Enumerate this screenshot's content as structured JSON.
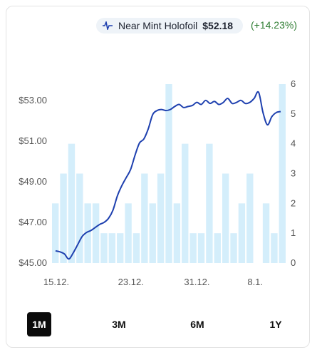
{
  "legend": {
    "series_name": "Near Mint Holofoil",
    "price": "$52.18",
    "change": "(+14.23%)",
    "icon": "line-chart-icon",
    "line_color": "#1e40af",
    "bar_color": "#d4eefb"
  },
  "ranges": [
    {
      "label": "1M",
      "active": true
    },
    {
      "label": "3M",
      "active": false
    },
    {
      "label": "6M",
      "active": false
    },
    {
      "label": "1Y",
      "active": false
    }
  ],
  "chart_data": {
    "type": "bar+line",
    "x_ticks": [
      "15.12.",
      "23.12.",
      "31.12.",
      "8.1."
    ],
    "y_left_ticks": [
      "$45.00",
      "$47.00",
      "$49.00",
      "$51.00",
      "$53.00"
    ],
    "y_left_range": [
      45,
      53.8
    ],
    "y_right_ticks": [
      "0",
      "1",
      "2",
      "3",
      "4",
      "5",
      "6"
    ],
    "y_right_range": [
      0,
      6
    ],
    "bars": [
      2,
      3,
      4,
      3,
      2,
      2,
      1,
      1,
      1,
      2,
      1,
      3,
      2,
      3,
      6,
      2,
      4,
      1,
      1,
      4,
      1,
      3,
      1,
      2,
      3,
      0,
      2,
      1,
      6
    ],
    "price_line": [
      45.6,
      45.55,
      45.45,
      45.2,
      45.5,
      45.9,
      46.3,
      46.5,
      46.6,
      46.75,
      46.9,
      47.0,
      47.2,
      47.6,
      48.3,
      48.8,
      49.2,
      49.6,
      50.3,
      50.9,
      51.1,
      51.6,
      52.3,
      52.5,
      52.55,
      52.5,
      52.55,
      52.7,
      52.8,
      52.65,
      52.7,
      52.75,
      52.9,
      52.8,
      53.0,
      52.85,
      52.95,
      52.8,
      52.9,
      53.1,
      52.85,
      52.9,
      53.0,
      52.85,
      52.9,
      53.1,
      53.4,
      52.4,
      51.8,
      52.2,
      52.4,
      52.45
    ]
  }
}
